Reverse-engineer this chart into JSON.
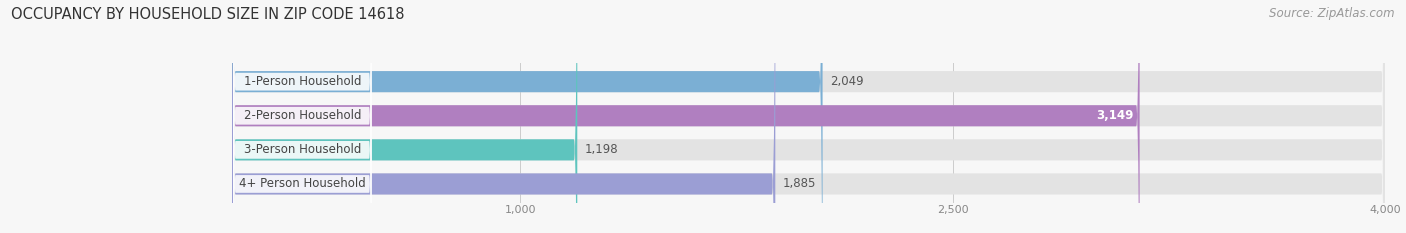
{
  "title": "OCCUPANCY BY HOUSEHOLD SIZE IN ZIP CODE 14618",
  "source": "Source: ZipAtlas.com",
  "categories": [
    "1-Person Household",
    "2-Person Household",
    "3-Person Household",
    "4+ Person Household"
  ],
  "values": [
    2049,
    3149,
    1198,
    1885
  ],
  "bar_colors": [
    "#7bafd4",
    "#b07fc0",
    "#5ec4be",
    "#9b9ed4"
  ],
  "xlim": [
    0,
    4000
  ],
  "xticks": [
    1000,
    2500,
    4000
  ],
  "xtick_labels": [
    "1,000",
    "2,500",
    "4,000"
  ],
  "background_color": "#f7f7f7",
  "bar_bg_color": "#e3e3e3",
  "title_fontsize": 10.5,
  "source_fontsize": 8.5,
  "label_fontsize": 8.5,
  "value_fontsize": 8.5,
  "bar_height": 0.62
}
